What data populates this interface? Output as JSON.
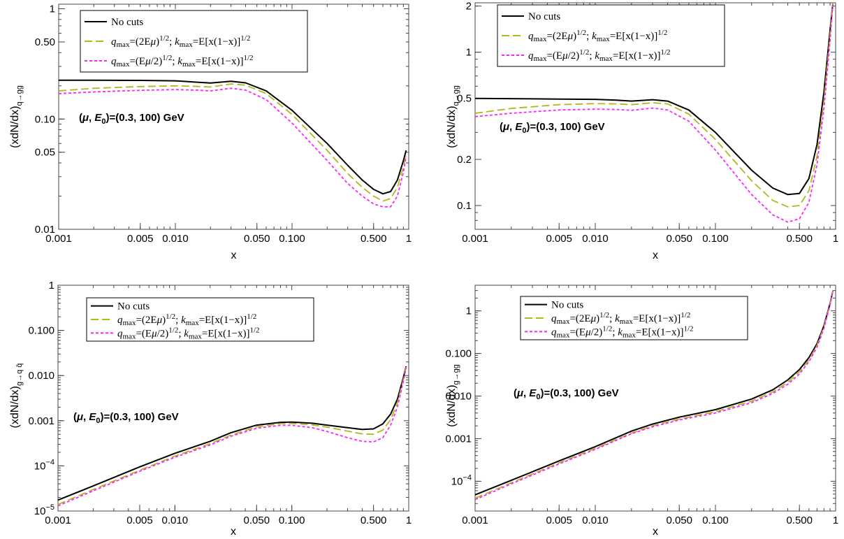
{
  "chart_data": [
    {
      "type": "line",
      "xscale": "log",
      "yscale": "log",
      "xlim": [
        0.001,
        1
      ],
      "ylim": [
        0.01,
        1.1
      ],
      "xlabel": "x",
      "ylabel": {
        "main": "(xdN/dx)",
        "sub": "q→gg"
      },
      "xticks": [
        0.001,
        0.005,
        0.01,
        0.05,
        0.1,
        0.5,
        1
      ],
      "xtick_labels": [
        "0.001",
        "0.005",
        "0.010",
        "0.050",
        "0.100",
        "0.500",
        "1"
      ],
      "yticks": [
        0.01,
        0.05,
        0.1,
        0.5,
        1
      ],
      "ytick_labels": [
        "0.01",
        "0.05",
        "0.10",
        "0.50",
        "1"
      ],
      "annotation": {
        "prefix": "(",
        "mu": "μ",
        "sep": ", ",
        "e": "E",
        "e_sub": "0",
        "suffix": ")=(0.3, 100) GeV"
      },
      "legend_position": "top-left",
      "series": [
        {
          "name": "No cuts",
          "color": "#000000",
          "style": "solid",
          "x": [
            0.001,
            0.002,
            0.005,
            0.01,
            0.015,
            0.02,
            0.03,
            0.04,
            0.06,
            0.1,
            0.2,
            0.3,
            0.4,
            0.5,
            0.6,
            0.7,
            0.8,
            0.9,
            0.95
          ],
          "y": [
            0.225,
            0.225,
            0.224,
            0.222,
            0.216,
            0.212,
            0.22,
            0.213,
            0.18,
            0.12,
            0.06,
            0.038,
            0.028,
            0.023,
            0.021,
            0.022,
            0.028,
            0.042,
            0.052
          ]
        },
        {
          "name": "q_max=(2Eμ)^1/2; k_max=E[x(1−x)]^1/2",
          "color": "#b5b51c",
          "style": "dash",
          "x": [
            0.001,
            0.002,
            0.005,
            0.01,
            0.015,
            0.02,
            0.03,
            0.04,
            0.06,
            0.1,
            0.2,
            0.3,
            0.4,
            0.5,
            0.6,
            0.7,
            0.8,
            0.9,
            0.95
          ],
          "y": [
            0.18,
            0.19,
            0.197,
            0.2,
            0.198,
            0.195,
            0.208,
            0.203,
            0.17,
            0.11,
            0.052,
            0.032,
            0.024,
            0.02,
            0.018,
            0.019,
            0.024,
            0.037,
            0.048
          ]
        },
        {
          "name": "q_max=(Eμ/2)^1/2; k_max=E[x(1−x)]^1/2",
          "color": "#ff22ff",
          "style": "dot",
          "x": [
            0.001,
            0.002,
            0.005,
            0.01,
            0.015,
            0.02,
            0.03,
            0.04,
            0.06,
            0.1,
            0.2,
            0.3,
            0.4,
            0.5,
            0.6,
            0.7,
            0.8,
            0.9,
            0.95
          ],
          "y": [
            0.17,
            0.176,
            0.182,
            0.185,
            0.183,
            0.18,
            0.19,
            0.183,
            0.15,
            0.092,
            0.042,
            0.026,
            0.02,
            0.017,
            0.016,
            0.016,
            0.02,
            0.033,
            0.046
          ]
        }
      ]
    },
    {
      "type": "line",
      "xscale": "log",
      "yscale": "log",
      "xlim": [
        0.001,
        1
      ],
      "ylim": [
        0.07,
        2.1
      ],
      "xlabel": "x",
      "ylabel": {
        "main": "(xdN/dx)",
        "sub": "q→gg"
      },
      "xticks": [
        0.001,
        0.005,
        0.01,
        0.05,
        0.1,
        0.5,
        1
      ],
      "xtick_labels": [
        "0.001",
        "0.005",
        "0.010",
        "0.050",
        "0.100",
        "0.500",
        "1"
      ],
      "yticks": [
        0.1,
        0.2,
        0.5,
        1,
        2
      ],
      "ytick_labels": [
        "0.1",
        "0.2",
        "0.5",
        "1",
        "2"
      ],
      "annotation": {
        "prefix": "(",
        "mu": "μ",
        "sep": ", ",
        "e": "E",
        "e_sub": "0",
        "suffix": ")=(0.3, 100) GeV"
      },
      "legend_position": "top-left",
      "series": [
        {
          "name": "No cuts",
          "color": "#000000",
          "style": "solid",
          "x": [
            0.001,
            0.002,
            0.005,
            0.01,
            0.015,
            0.02,
            0.03,
            0.04,
            0.06,
            0.1,
            0.2,
            0.3,
            0.4,
            0.5,
            0.6,
            0.7,
            0.8,
            0.9,
            0.95
          ],
          "y": [
            0.5,
            0.498,
            0.495,
            0.493,
            0.487,
            0.48,
            0.49,
            0.48,
            0.42,
            0.3,
            0.17,
            0.13,
            0.118,
            0.12,
            0.15,
            0.25,
            0.55,
            1.4,
            2.3
          ]
        },
        {
          "name": "q_max=(2Eμ)^1/2; k_max=E[x(1−x)]^1/2",
          "color": "#b5b51c",
          "style": "dash",
          "x": [
            0.001,
            0.002,
            0.005,
            0.01,
            0.015,
            0.02,
            0.03,
            0.04,
            0.06,
            0.1,
            0.2,
            0.3,
            0.4,
            0.5,
            0.6,
            0.7,
            0.8,
            0.9,
            0.95
          ],
          "y": [
            0.4,
            0.43,
            0.455,
            0.462,
            0.46,
            0.455,
            0.468,
            0.46,
            0.395,
            0.27,
            0.145,
            0.108,
            0.098,
            0.1,
            0.125,
            0.21,
            0.48,
            1.3,
            2.2
          ]
        },
        {
          "name": "q_max=(Eμ/2)^1/2; k_max=E[x(1−x)]^1/2",
          "color": "#ff22ff",
          "style": "dot",
          "x": [
            0.001,
            0.002,
            0.005,
            0.01,
            0.015,
            0.02,
            0.03,
            0.04,
            0.06,
            0.1,
            0.2,
            0.3,
            0.4,
            0.5,
            0.6,
            0.7,
            0.8,
            0.9,
            0.95
          ],
          "y": [
            0.38,
            0.4,
            0.42,
            0.425,
            0.423,
            0.418,
            0.432,
            0.42,
            0.355,
            0.23,
            0.118,
            0.087,
            0.078,
            0.082,
            0.105,
            0.185,
            0.43,
            1.2,
            2.1
          ]
        }
      ]
    },
    {
      "type": "line",
      "xscale": "log",
      "yscale": "log",
      "xlim": [
        0.001,
        1
      ],
      "ylim": [
        1e-05,
        1
      ],
      "xlabel": "x",
      "ylabel": {
        "main": "(xdN/dx)",
        "sub": "g→q q̄"
      },
      "xticks": [
        0.001,
        0.005,
        0.01,
        0.05,
        0.1,
        0.5,
        1
      ],
      "xtick_labels": [
        "0.001",
        "0.005",
        "0.010",
        "0.050",
        "0.100",
        "0.500",
        "1"
      ],
      "yticks": [
        1e-05,
        0.0001,
        0.001,
        0.01,
        0.1,
        1
      ],
      "ytick_labels": [
        {
          "base": "10",
          "exp": "−5"
        },
        {
          "base": "10",
          "exp": "−4"
        },
        "0.001",
        "0.010",
        "0.100",
        "1"
      ],
      "annotation": {
        "prefix": "(",
        "mu": "μ",
        "sep": ", ",
        "e": "E",
        "e_sub": "0",
        "suffix": ")=(0.3, 100) GeV"
      },
      "legend_position": "top-left",
      "series": [
        {
          "name": "No cuts",
          "color": "#000000",
          "style": "solid",
          "x": [
            0.001,
            0.002,
            0.005,
            0.01,
            0.02,
            0.03,
            0.05,
            0.08,
            0.1,
            0.15,
            0.2,
            0.3,
            0.4,
            0.5,
            0.6,
            0.7,
            0.8,
            0.9,
            0.95
          ],
          "y": [
            1.75e-05,
            3.6e-05,
            9.5e-05,
            0.00019,
            0.00035,
            0.00054,
            0.0008,
            0.00092,
            0.00093,
            0.00088,
            0.0008,
            0.0007,
            0.00064,
            0.00066,
            0.00085,
            0.0014,
            0.003,
            0.009,
            0.016
          ]
        },
        {
          "name": "q_max=(2Eμ)^1/2; k_max=E[x(1−x)]^1/2",
          "color": "#b5b51c",
          "style": "dash",
          "x": [
            0.001,
            0.002,
            0.005,
            0.01,
            0.02,
            0.03,
            0.05,
            0.08,
            0.1,
            0.15,
            0.2,
            0.3,
            0.4,
            0.5,
            0.6,
            0.7,
            0.8,
            0.9,
            0.95
          ],
          "y": [
            1.4e-05,
            3e-05,
            8e-05,
            0.000165,
            0.00031,
            0.00048,
            0.00073,
            0.00086,
            0.00087,
            0.00081,
            0.00072,
            0.00059,
            0.00051,
            0.0005,
            0.00062,
            0.00105,
            0.0025,
            0.0082,
            0.0155
          ]
        },
        {
          "name": "q_max=(Eμ/2)^1/2; k_max=E[x(1−x)]^1/2",
          "color": "#ff22ff",
          "style": "dot",
          "x": [
            0.001,
            0.002,
            0.005,
            0.01,
            0.02,
            0.03,
            0.05,
            0.08,
            0.1,
            0.15,
            0.2,
            0.3,
            0.4,
            0.5,
            0.6,
            0.7,
            0.8,
            0.9,
            0.95
          ],
          "y": [
            1.3e-05,
            2.8e-05,
            7.6e-05,
            0.000155,
            0.00029,
            0.00045,
            0.00068,
            0.00079,
            0.00079,
            0.0007,
            0.00058,
            0.00042,
            0.00035,
            0.00034,
            0.00042,
            0.0008,
            0.002,
            0.0075,
            0.015
          ]
        }
      ]
    },
    {
      "type": "line",
      "xscale": "log",
      "yscale": "log",
      "xlim": [
        0.001,
        1
      ],
      "ylim": [
        2e-05,
        4.0
      ],
      "xlabel": "x",
      "ylabel": {
        "main": "(xdN/dx)",
        "sub": "g→gg"
      },
      "xticks": [
        0.001,
        0.005,
        0.01,
        0.05,
        0.1,
        0.5,
        1
      ],
      "xtick_labels": [
        "0.001",
        "0.005",
        "0.010",
        "0.050",
        "0.100",
        "0.500",
        "1"
      ],
      "yticks": [
        0.0001,
        0.001,
        0.01,
        0.1,
        1
      ],
      "ytick_labels": [
        {
          "base": "10",
          "exp": "−4"
        },
        "0.001",
        "0.010",
        "0.100",
        "1"
      ],
      "annotation": {
        "prefix": "(",
        "mu": "μ",
        "sep": ", ",
        "e": "E",
        "e_sub": "0",
        "suffix": ")=(0.3, 100) GeV"
      },
      "legend_position": "top-left",
      "series": [
        {
          "name": "No cuts",
          "color": "#000000",
          "style": "solid",
          "x": [
            0.001,
            0.002,
            0.005,
            0.01,
            0.02,
            0.03,
            0.05,
            0.1,
            0.2,
            0.3,
            0.4,
            0.5,
            0.6,
            0.7,
            0.8,
            0.9,
            0.95
          ],
          "y": [
            4.8e-05,
            0.000105,
            0.0003,
            0.00065,
            0.0015,
            0.0022,
            0.0032,
            0.0048,
            0.0085,
            0.014,
            0.024,
            0.042,
            0.08,
            0.17,
            0.45,
            1.5,
            3.0
          ]
        },
        {
          "name": "q_max=(2Eμ)^1/2; k_max=E[x(1−x)]^1/2",
          "color": "#b5b51c",
          "style": "dash",
          "x": [
            0.001,
            0.002,
            0.005,
            0.01,
            0.02,
            0.03,
            0.05,
            0.1,
            0.2,
            0.3,
            0.4,
            0.5,
            0.6,
            0.7,
            0.8,
            0.9,
            0.95
          ],
          "y": [
            4e-05,
            9.2e-05,
            0.00027,
            0.00059,
            0.00135,
            0.002,
            0.0029,
            0.0043,
            0.0076,
            0.0125,
            0.021,
            0.037,
            0.071,
            0.155,
            0.42,
            1.45,
            3.0
          ]
        },
        {
          "name": "q_max=(Eμ/2)^1/2; k_max=E[x(1−x)]^1/2",
          "color": "#ff22ff",
          "style": "dot",
          "x": [
            0.001,
            0.002,
            0.005,
            0.01,
            0.02,
            0.03,
            0.05,
            0.1,
            0.2,
            0.3,
            0.4,
            0.5,
            0.6,
            0.7,
            0.8,
            0.9,
            0.95
          ],
          "y": [
            3.7e-05,
            8.7e-05,
            0.000255,
            0.00056,
            0.0013,
            0.0019,
            0.00275,
            0.004,
            0.007,
            0.0115,
            0.019,
            0.033,
            0.064,
            0.14,
            0.39,
            1.4,
            3.0
          ]
        }
      ]
    }
  ],
  "legend": {
    "no_cuts": "No cuts",
    "entries": [
      {
        "q": "q",
        "q_sub": "max",
        "q_val_pre": "=(2E",
        "mu": "μ",
        "q_val_post": ")",
        "q_exp": "1/2",
        "sep": "; ",
        "k": "k",
        "k_sub": "max",
        "k_val": "=E[x(1−x)]",
        "k_exp": "1/2"
      },
      {
        "q": "q",
        "q_sub": "max",
        "q_val_pre": "=(E",
        "mu": "μ",
        "q_val_post": "/2)",
        "q_exp": "1/2",
        "sep": "; ",
        "k": "k",
        "k_sub": "max",
        "k_val": "=E[x(1−x)]",
        "k_exp": "1/2"
      }
    ]
  }
}
